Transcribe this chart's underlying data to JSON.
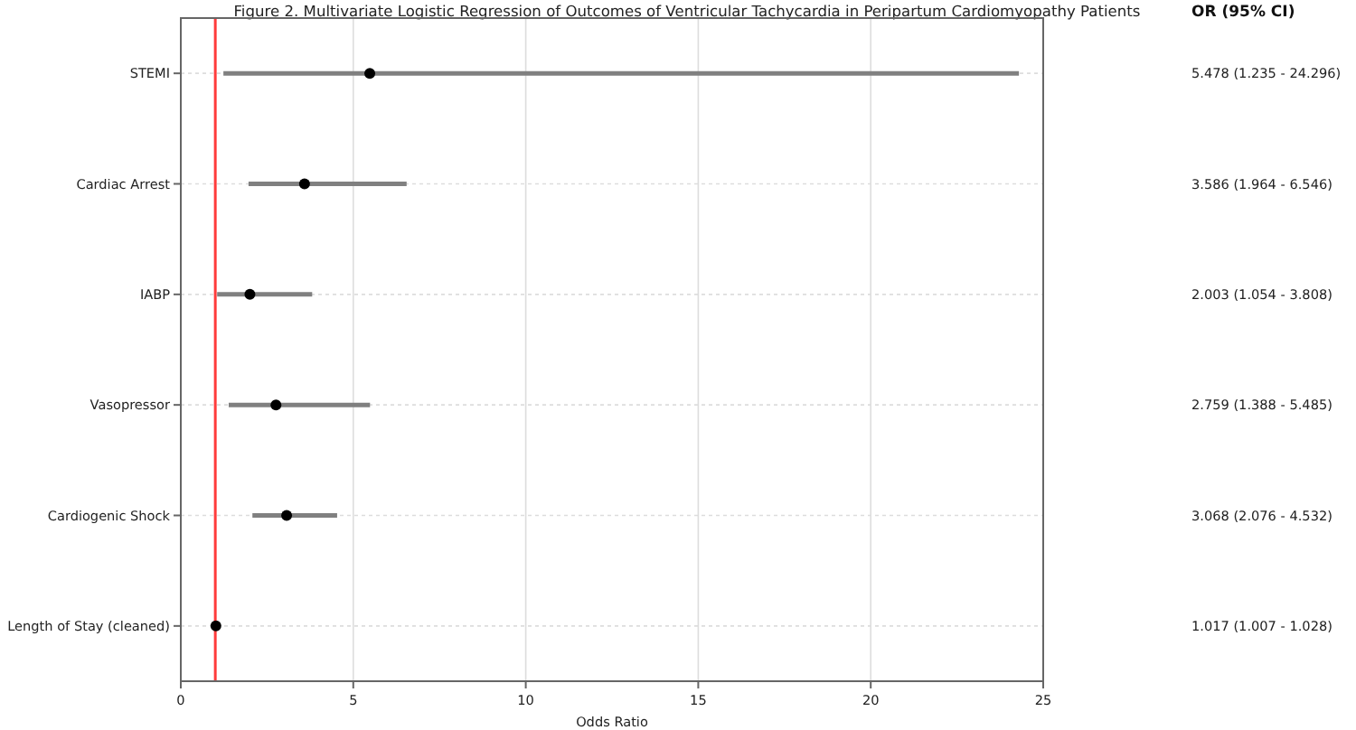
{
  "chart_data": {
    "type": "scatter",
    "orientation": "horizontal",
    "title": "Figure 2. Multivariate Logistic Regression of Outcomes of Ventricular Tachycardia in Peripartum Cardiomyopathy Patients",
    "xlabel": "Odds Ratio",
    "categories": [
      "STEMI",
      "Cardiac Arrest",
      "IABP",
      "Vasopressor",
      "Cardiogenic Shock",
      "Length of Stay (cleaned)"
    ],
    "series": [
      {
        "color": "#000000",
        "values": [
          5.478,
          3.586,
          2.003,
          2.759,
          3.068,
          1.017
        ],
        "errors": [
          [
            1.235,
            24.296
          ],
          [
            1.964,
            6.546
          ],
          [
            1.054,
            3.808
          ],
          [
            1.388,
            5.485
          ],
          [
            2.076,
            4.532
          ],
          [
            1.007,
            1.028
          ]
        ]
      }
    ],
    "xlim": [
      0,
      25
    ],
    "xticks": [
      0,
      5,
      10,
      15,
      20,
      25
    ],
    "ref_lines": [
      {
        "axis": "x",
        "value": 1,
        "color": "#ff3b3b"
      }
    ],
    "annotations": [
      "OR (95% CI)",
      "5.478 (1.235 - 24.296)",
      "3.586 (1.964 - 6.546)",
      "2.003 (1.054 - 3.808)",
      "2.759 (1.388 - 5.485)",
      "3.068 (2.076 - 4.532)",
      "1.017 (1.007 - 1.028)"
    ],
    "grid": true,
    "marker": "circle"
  }
}
